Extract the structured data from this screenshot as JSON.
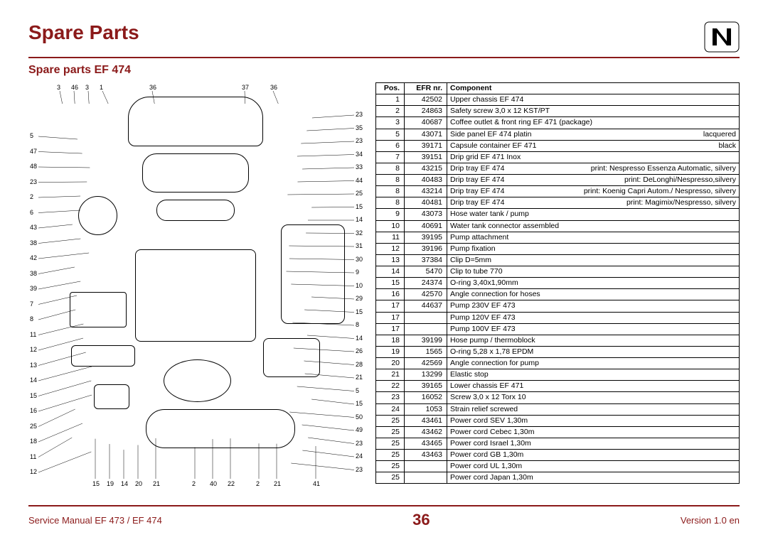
{
  "header": {
    "title": "Spare Parts",
    "subtitle": "Spare parts EF 474"
  },
  "footer": {
    "left": "Service Manual EF 473 / EF 474",
    "page": "36",
    "right": "Version 1.0  en"
  },
  "colors": {
    "accent": "#8b1a1a",
    "border": "#000000",
    "background": "#ffffff"
  },
  "diagram": {
    "type": "exploded-view",
    "callouts_left": [
      "3",
      "46",
      "3",
      "1",
      "36",
      "37",
      "36",
      "5",
      "47",
      "48",
      "23",
      "2",
      "6",
      "43",
      "38",
      "42",
      "38",
      "39",
      "7",
      "8",
      "11",
      "12",
      "13",
      "14",
      "15",
      "16",
      "25",
      "18",
      "11",
      "12"
    ],
    "callouts_right": [
      "23",
      "35",
      "23",
      "34",
      "33",
      "44",
      "25",
      "15",
      "14",
      "32",
      "31",
      "30",
      "9",
      "10",
      "29",
      "15",
      "8",
      "14",
      "26",
      "28",
      "21",
      "5",
      "15",
      "50",
      "49",
      "23",
      "24",
      "23"
    ],
    "callouts_bottom": [
      "15",
      "19",
      "14",
      "20",
      "21",
      "2",
      "40",
      "22",
      "2",
      "21",
      "41"
    ]
  },
  "table": {
    "headers": {
      "pos": "Pos.",
      "efr": "EFR nr.",
      "component": "Component"
    },
    "rows": [
      {
        "pos": "1",
        "efr": "42502",
        "component": "Upper chassis EF 474"
      },
      {
        "pos": "2",
        "efr": "24863",
        "component": "Safety screw 3,0 x 12 KST/PT"
      },
      {
        "pos": "3",
        "efr": "40687",
        "component": "Coffee outlet & front ring EF 471 (package)"
      },
      {
        "pos": "5",
        "efr": "43071",
        "component": "Side panel EF 474 platin",
        "right": "lacquered"
      },
      {
        "pos": "6",
        "efr": "39171",
        "component": "Capsule container EF 471",
        "right": "black"
      },
      {
        "pos": "7",
        "efr": "39151",
        "component": "Drip grid EF 471 Inox"
      },
      {
        "pos": "8",
        "efr": "43215",
        "component": "Drip tray EF 474",
        "right": "print: Nespresso Essenza Automatic, silvery"
      },
      {
        "pos": "8",
        "efr": "40483",
        "component": "Drip tray EF 474",
        "right": "print: DeLonghi/Nespresso,silvery"
      },
      {
        "pos": "8",
        "efr": "43214",
        "component": "Drip tray EF 474",
        "right": "print: Koenig Capri Autom./ Nespresso, silvery"
      },
      {
        "pos": "8",
        "efr": "40481",
        "component": "Drip tray EF 474",
        "right": "print: Magimix/Nespresso, silvery"
      },
      {
        "pos": "9",
        "efr": "43073",
        "component": "Hose water tank / pump"
      },
      {
        "pos": "10",
        "efr": "40691",
        "component": "Water tank connector assembled"
      },
      {
        "pos": "11",
        "efr": "39195",
        "component": "Pump attachment"
      },
      {
        "pos": "12",
        "efr": "39196",
        "component": "Pump fixation"
      },
      {
        "pos": "13",
        "efr": "37384",
        "component": "Clip D=5mm"
      },
      {
        "pos": "14",
        "efr": "5470",
        "component": "Clip to tube 770"
      },
      {
        "pos": "15",
        "efr": "24374",
        "component": "O-ring 3,40x1,90mm"
      },
      {
        "pos": "16",
        "efr": "42570",
        "component": "Angle connection for hoses"
      },
      {
        "pos": "17",
        "efr": "44637",
        "component": "Pump 230V EF 473"
      },
      {
        "pos": "17",
        "efr": "",
        "component": "Pump 120V EF 473"
      },
      {
        "pos": "17",
        "efr": "",
        "component": "Pump 100V EF 473"
      },
      {
        "pos": "18",
        "efr": "39199",
        "component": "Hose pump / thermoblock"
      },
      {
        "pos": "19",
        "efr": "1565",
        "component": "O-ring 5,28 x 1,78 EPDM"
      },
      {
        "pos": "20",
        "efr": "42569",
        "component": "Angle connection for pump"
      },
      {
        "pos": "21",
        "efr": "13299",
        "component": "Elastic stop"
      },
      {
        "pos": "22",
        "efr": "39165",
        "component": "Lower chassis EF 471"
      },
      {
        "pos": "23",
        "efr": "16052",
        "component": "Screw 3,0 x 12 Torx 10"
      },
      {
        "pos": "24",
        "efr": "1053",
        "component": "Strain relief screwed"
      },
      {
        "pos": "25",
        "efr": "43461",
        "component": "Power cord SEV 1,30m"
      },
      {
        "pos": "25",
        "efr": "43462",
        "component": "Power cord Cebec 1,30m"
      },
      {
        "pos": "25",
        "efr": "43465",
        "component": "Power cord Israel 1,30m"
      },
      {
        "pos": "25",
        "efr": "43463",
        "component": "Power cord GB 1,30m"
      },
      {
        "pos": "25",
        "efr": "",
        "component": "Power cord UL 1,30m"
      },
      {
        "pos": "25",
        "efr": "",
        "component": "Power cord Japan 1,30m"
      }
    ]
  }
}
